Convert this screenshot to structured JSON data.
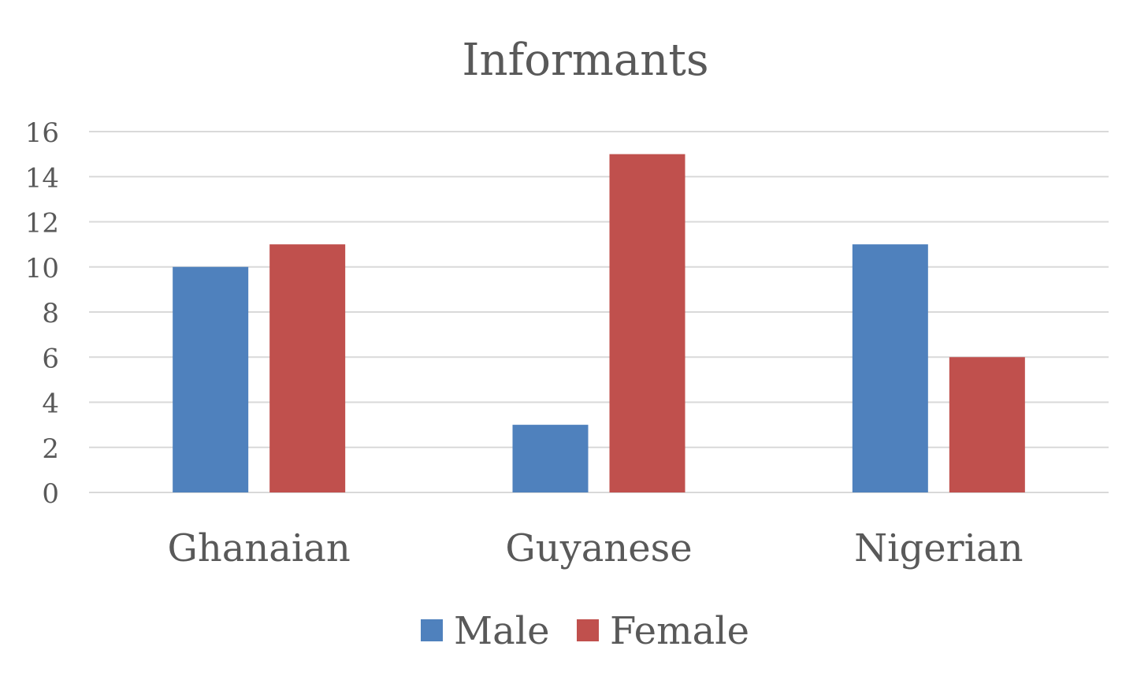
{
  "chart_data": {
    "type": "bar",
    "title": "Informants",
    "categories": [
      "Ghanaian",
      "Guyanese",
      "Nigerian"
    ],
    "series": [
      {
        "name": "Male",
        "values": [
          10,
          3,
          11
        ],
        "color": "#4F81BD"
      },
      {
        "name": "Female",
        "values": [
          11,
          15,
          6
        ],
        "color": "#C0504D"
      }
    ],
    "ylim": [
      0,
      16
    ],
    "yticks": [
      0,
      2,
      4,
      6,
      8,
      10,
      12,
      14,
      16
    ],
    "grid": true,
    "legend_position": "bottom",
    "gridline_color": "#D9D9D9",
    "text_color": "#595959"
  }
}
